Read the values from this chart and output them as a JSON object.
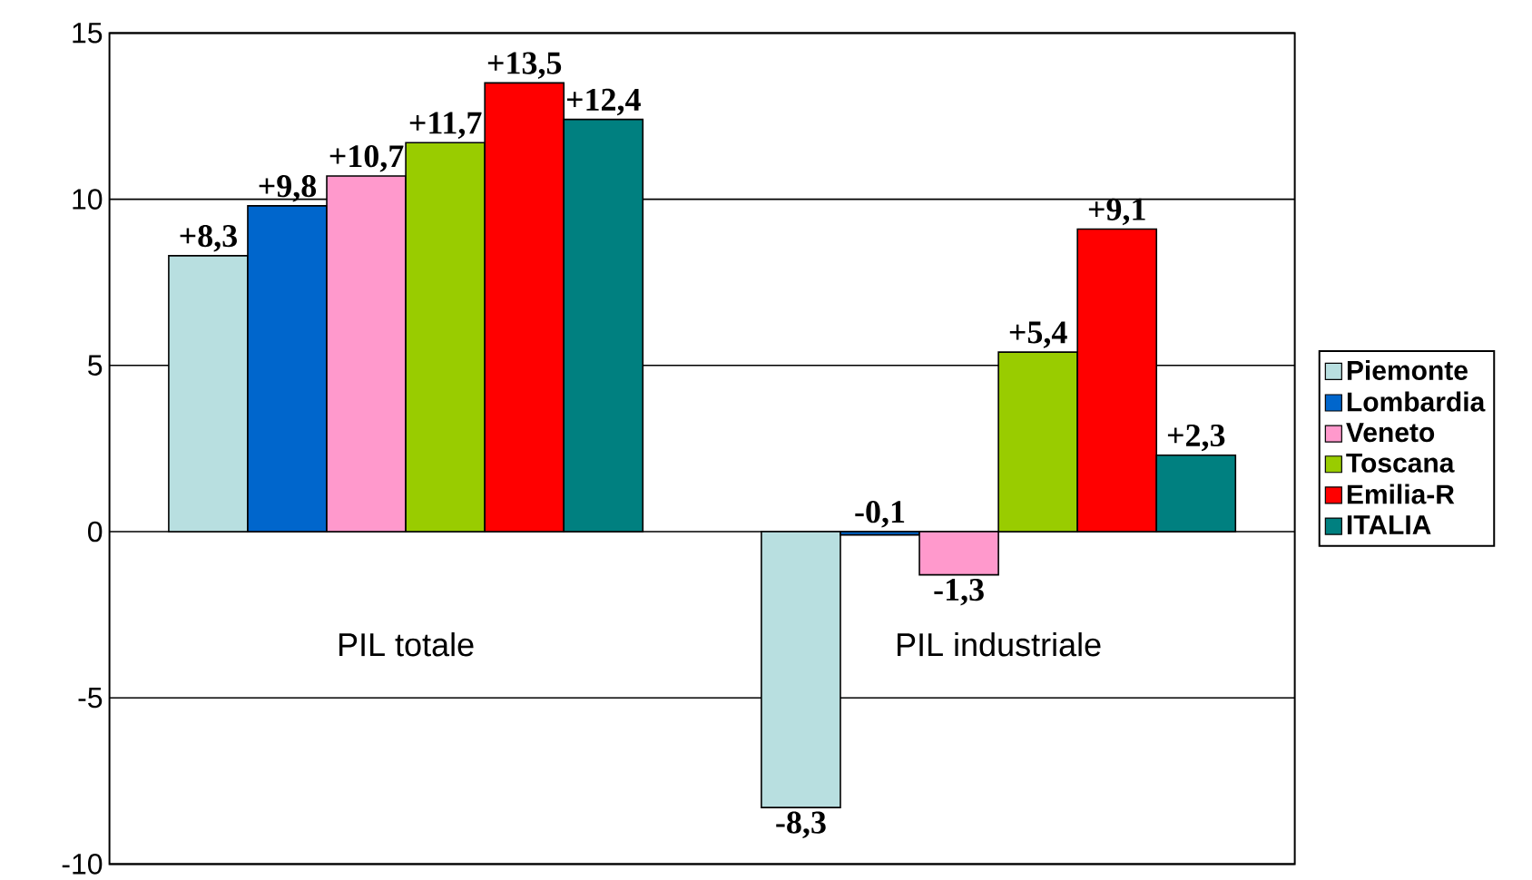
{
  "chart_data": {
    "type": "bar",
    "categories": [
      "PIL totale",
      "PIL industriale"
    ],
    "series": [
      {
        "name": "Piemonte",
        "color": "#b8dfe0",
        "values": [
          8.3,
          -8.3
        ],
        "value_labels": [
          "+8,3",
          "-8,3"
        ]
      },
      {
        "name": "Lombardia",
        "color": "#0066cc",
        "values": [
          9.8,
          -0.1
        ],
        "value_labels": [
          "+9,8",
          "-0,1"
        ]
      },
      {
        "name": "Veneto",
        "color": "#ff99cc",
        "values": [
          10.7,
          -1.3
        ],
        "value_labels": [
          "+10,7",
          "-1,3"
        ]
      },
      {
        "name": "Toscana",
        "color": "#99cc00",
        "values": [
          11.7,
          5.4
        ],
        "value_labels": [
          "+11,7",
          "+5,4"
        ]
      },
      {
        "name": "Emilia-R",
        "color": "#ff0000",
        "values": [
          13.5,
          9.1
        ],
        "value_labels": [
          "+13,5",
          "+9,1"
        ]
      },
      {
        "name": "ITALIA",
        "color": "#008080",
        "values": [
          12.4,
          2.3
        ],
        "value_labels": [
          "+12,4",
          "+2,3"
        ]
      }
    ],
    "ylim": [
      -10,
      15
    ],
    "yticks": [
      -10,
      -5,
      0,
      5,
      10,
      15
    ],
    "grid": "y",
    "legend": "right"
  }
}
